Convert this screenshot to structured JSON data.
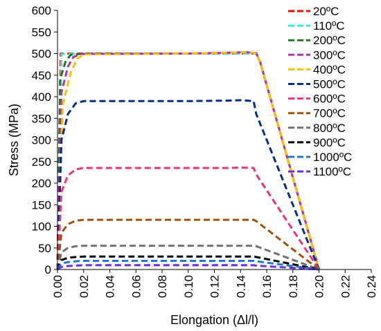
{
  "chart_data": {
    "type": "line",
    "title": "",
    "xlabel": "Elongation (Δl/l)",
    "ylabel": "Stress (MPa)",
    "xlim": [
      0,
      0.24
    ],
    "ylim": [
      0,
      600
    ],
    "x_ticks": [
      "0.00",
      "0.02",
      "0.04",
      "0.06",
      "0.08",
      "0.10",
      "0.12",
      "0.14",
      "0.16",
      "0.18",
      "0.20",
      "0.22",
      "0.24"
    ],
    "y_ticks": [
      "0",
      "50",
      "100",
      "150",
      "200",
      "250",
      "300",
      "350",
      "400",
      "450",
      "500",
      "550",
      "600"
    ],
    "grid": false,
    "legend_position": "top-right",
    "line_style": "dashed",
    "series": [
      {
        "name": "20ºC",
        "color": "#ff0000",
        "x": [
          0,
          0.0025,
          0.152,
          0.155,
          0.2
        ],
        "y": [
          0,
          500,
          500,
          480,
          0
        ]
      },
      {
        "name": "110ºC",
        "color": "#33e6d6",
        "x": [
          0,
          0.003,
          0.152,
          0.155,
          0.2
        ],
        "y": [
          0,
          499,
          500,
          480,
          0
        ]
      },
      {
        "name": "200ºC",
        "color": "#1f7a1f",
        "x": [
          0,
          0.002,
          0.006,
          0.01,
          0.02,
          0.1,
          0.13,
          0.145,
          0.152,
          0.155,
          0.2
        ],
        "y": [
          0,
          440,
          480,
          497,
          500,
          500,
          502,
          503,
          501,
          480,
          0
        ]
      },
      {
        "name": "300ºC",
        "color": "#b033b0",
        "x": [
          0,
          0.003,
          0.008,
          0.012,
          0.018,
          0.1,
          0.13,
          0.145,
          0.152,
          0.155,
          0.2
        ],
        "y": [
          0,
          410,
          470,
          492,
          499,
          500,
          502,
          503,
          501,
          480,
          0
        ]
      },
      {
        "name": "400ºC",
        "color": "#ffc000",
        "x": [
          0,
          0.004,
          0.01,
          0.015,
          0.02,
          0.1,
          0.13,
          0.145,
          0.152,
          0.155,
          0.2
        ],
        "y": [
          0,
          380,
          455,
          488,
          498,
          500,
          502,
          503,
          501,
          480,
          0
        ]
      },
      {
        "name": "500ºC",
        "color": "#002e8a",
        "x": [
          0,
          0.003,
          0.008,
          0.014,
          0.02,
          0.1,
          0.13,
          0.14,
          0.15,
          0.152,
          0.2
        ],
        "y": [
          0,
          300,
          360,
          385,
          390,
          390,
          391,
          392,
          390,
          360,
          0
        ]
      },
      {
        "name": "600ºC",
        "color": "#f0336e",
        "x": [
          0,
          0.003,
          0.008,
          0.014,
          0.02,
          0.1,
          0.13,
          0.14,
          0.15,
          0.152,
          0.2
        ],
        "y": [
          0,
          180,
          218,
          232,
          235,
          235,
          235,
          236,
          235,
          220,
          0
        ]
      },
      {
        "name": "700ºC",
        "color": "#a0520c",
        "x": [
          0,
          0.003,
          0.008,
          0.014,
          0.02,
          0.1,
          0.13,
          0.15,
          0.152,
          0.2
        ],
        "y": [
          0,
          85,
          105,
          113,
          115,
          115,
          115,
          115,
          112,
          0
        ]
      },
      {
        "name": "800ºC",
        "color": "#707070",
        "x": [
          0,
          0.003,
          0.008,
          0.014,
          0.02,
          0.1,
          0.13,
          0.15,
          0.152,
          0.2
        ],
        "y": [
          0,
          40,
          50,
          54,
          55,
          55,
          55,
          55,
          54,
          0
        ]
      },
      {
        "name": "900ºC",
        "color": "#000000",
        "x": [
          0,
          0.003,
          0.008,
          0.014,
          0.02,
          0.1,
          0.13,
          0.15,
          0.152,
          0.2
        ],
        "y": [
          0,
          22,
          27,
          29,
          30,
          30,
          30,
          30,
          29,
          0
        ]
      },
      {
        "name": "1000ºC",
        "color": "#1f78d0",
        "x": [
          0,
          0.003,
          0.008,
          0.014,
          0.02,
          0.1,
          0.13,
          0.15,
          0.152,
          0.2
        ],
        "y": [
          0,
          14,
          17,
          19,
          20,
          20,
          20,
          20,
          19,
          0
        ]
      },
      {
        "name": "1100ºC",
        "color": "#6a2ee0",
        "x": [
          0,
          0.003,
          0.008,
          0.014,
          0.02,
          0.1,
          0.13,
          0.15,
          0.152,
          0.2
        ],
        "y": [
          0,
          6,
          8,
          9,
          10,
          10,
          10,
          10,
          9,
          0
        ]
      }
    ]
  }
}
